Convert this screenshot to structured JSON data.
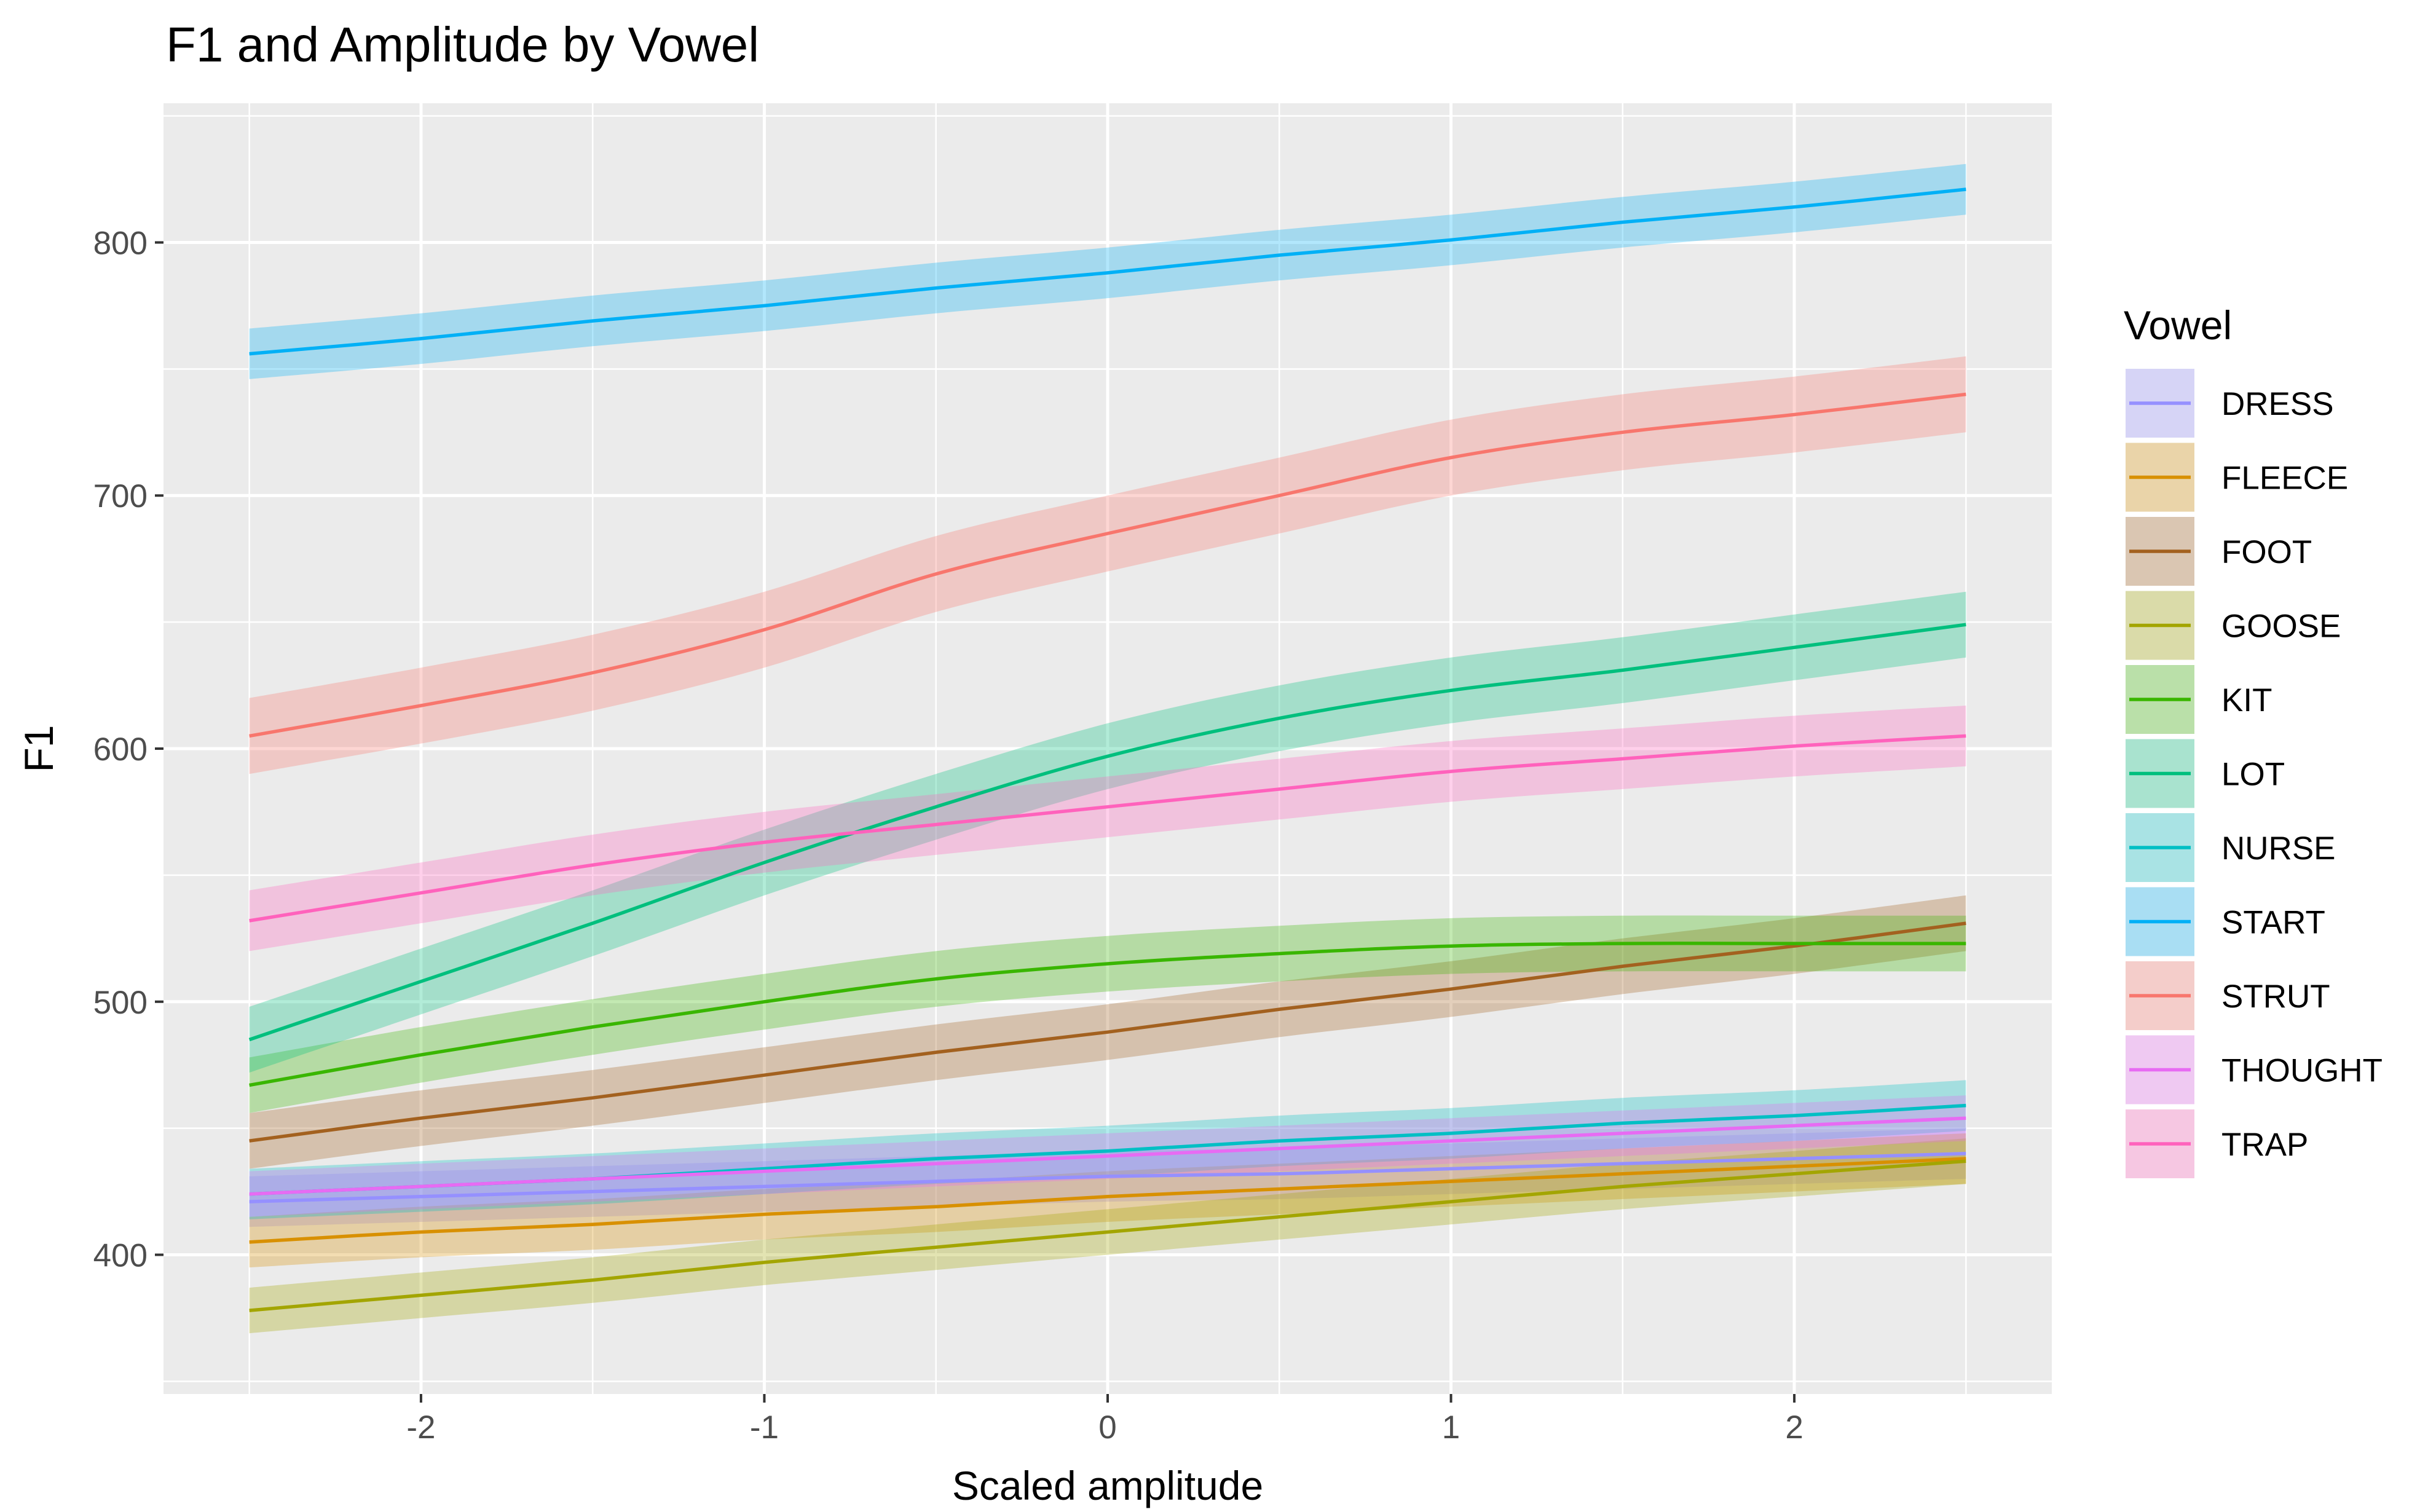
{
  "chart_data": {
    "type": "line",
    "title": "F1 and Amplitude by Vowel",
    "xlabel": "Scaled amplitude",
    "ylabel": "F1",
    "xlim": [
      -2.75,
      2.75
    ],
    "ylim": [
      345,
      855
    ],
    "x_ticks": [
      -2,
      -1,
      0,
      1,
      2
    ],
    "y_ticks": [
      400,
      500,
      600,
      700,
      800
    ],
    "grid": true,
    "legend": {
      "title": "Vowel",
      "position": "right"
    },
    "confidence_band": true,
    "x": [
      -2.5,
      -2,
      -1.5,
      -1,
      -0.5,
      0,
      0.5,
      1,
      1.5,
      2,
      2.5
    ],
    "series": [
      {
        "name": "DRESS",
        "color": "#9590FF",
        "values": [
          421,
          423,
          425,
          427,
          429,
          431,
          432,
          434,
          436,
          438,
          440
        ],
        "band": 10
      },
      {
        "name": "FLEECE",
        "color": "#D89000",
        "values": [
          405,
          409,
          412,
          416,
          419,
          423,
          426,
          429,
          432,
          435,
          438
        ],
        "band": 10
      },
      {
        "name": "FOOT",
        "color": "#A3611F",
        "values": [
          445,
          454,
          462,
          471,
          480,
          488,
          497,
          505,
          514,
          522,
          531
        ],
        "band": 11
      },
      {
        "name": "GOOSE",
        "color": "#A3A500",
        "values": [
          378,
          384,
          390,
          397,
          403,
          409,
          415,
          421,
          427,
          432,
          437
        ],
        "band": 9
      },
      {
        "name": "KIT",
        "color": "#39B600",
        "values": [
          467,
          479,
          490,
          500,
          509,
          515,
          519,
          522,
          523,
          523,
          523
        ],
        "band": 11
      },
      {
        "name": "LOT",
        "color": "#00BF7D",
        "values": [
          485,
          508,
          531,
          555,
          577,
          597,
          612,
          623,
          631,
          640,
          649
        ],
        "band": 13
      },
      {
        "name": "NURSE",
        "color": "#00BFC4",
        "values": [
          424,
          427,
          430,
          434,
          438,
          441,
          445,
          448,
          452,
          455,
          459
        ],
        "band": 10
      },
      {
        "name": "START",
        "color": "#00B0F6",
        "values": [
          756,
          762,
          769,
          775,
          782,
          788,
          795,
          801,
          808,
          814,
          821
        ],
        "band": 10
      },
      {
        "name": "STRUT",
        "color": "#F8766D",
        "values": [
          605,
          617,
          630,
          647,
          669,
          685,
          700,
          715,
          725,
          732,
          740
        ],
        "band": 15
      },
      {
        "name": "THOUGHT",
        "color": "#E76BF3",
        "values": [
          424,
          427,
          430,
          433,
          436,
          439,
          442,
          445,
          448,
          451,
          454
        ],
        "band": 9
      },
      {
        "name": "TRAP",
        "color": "#FF62BC",
        "values": [
          532,
          543,
          554,
          563,
          570,
          577,
          584,
          591,
          596,
          601,
          605
        ],
        "band": 12
      }
    ]
  }
}
